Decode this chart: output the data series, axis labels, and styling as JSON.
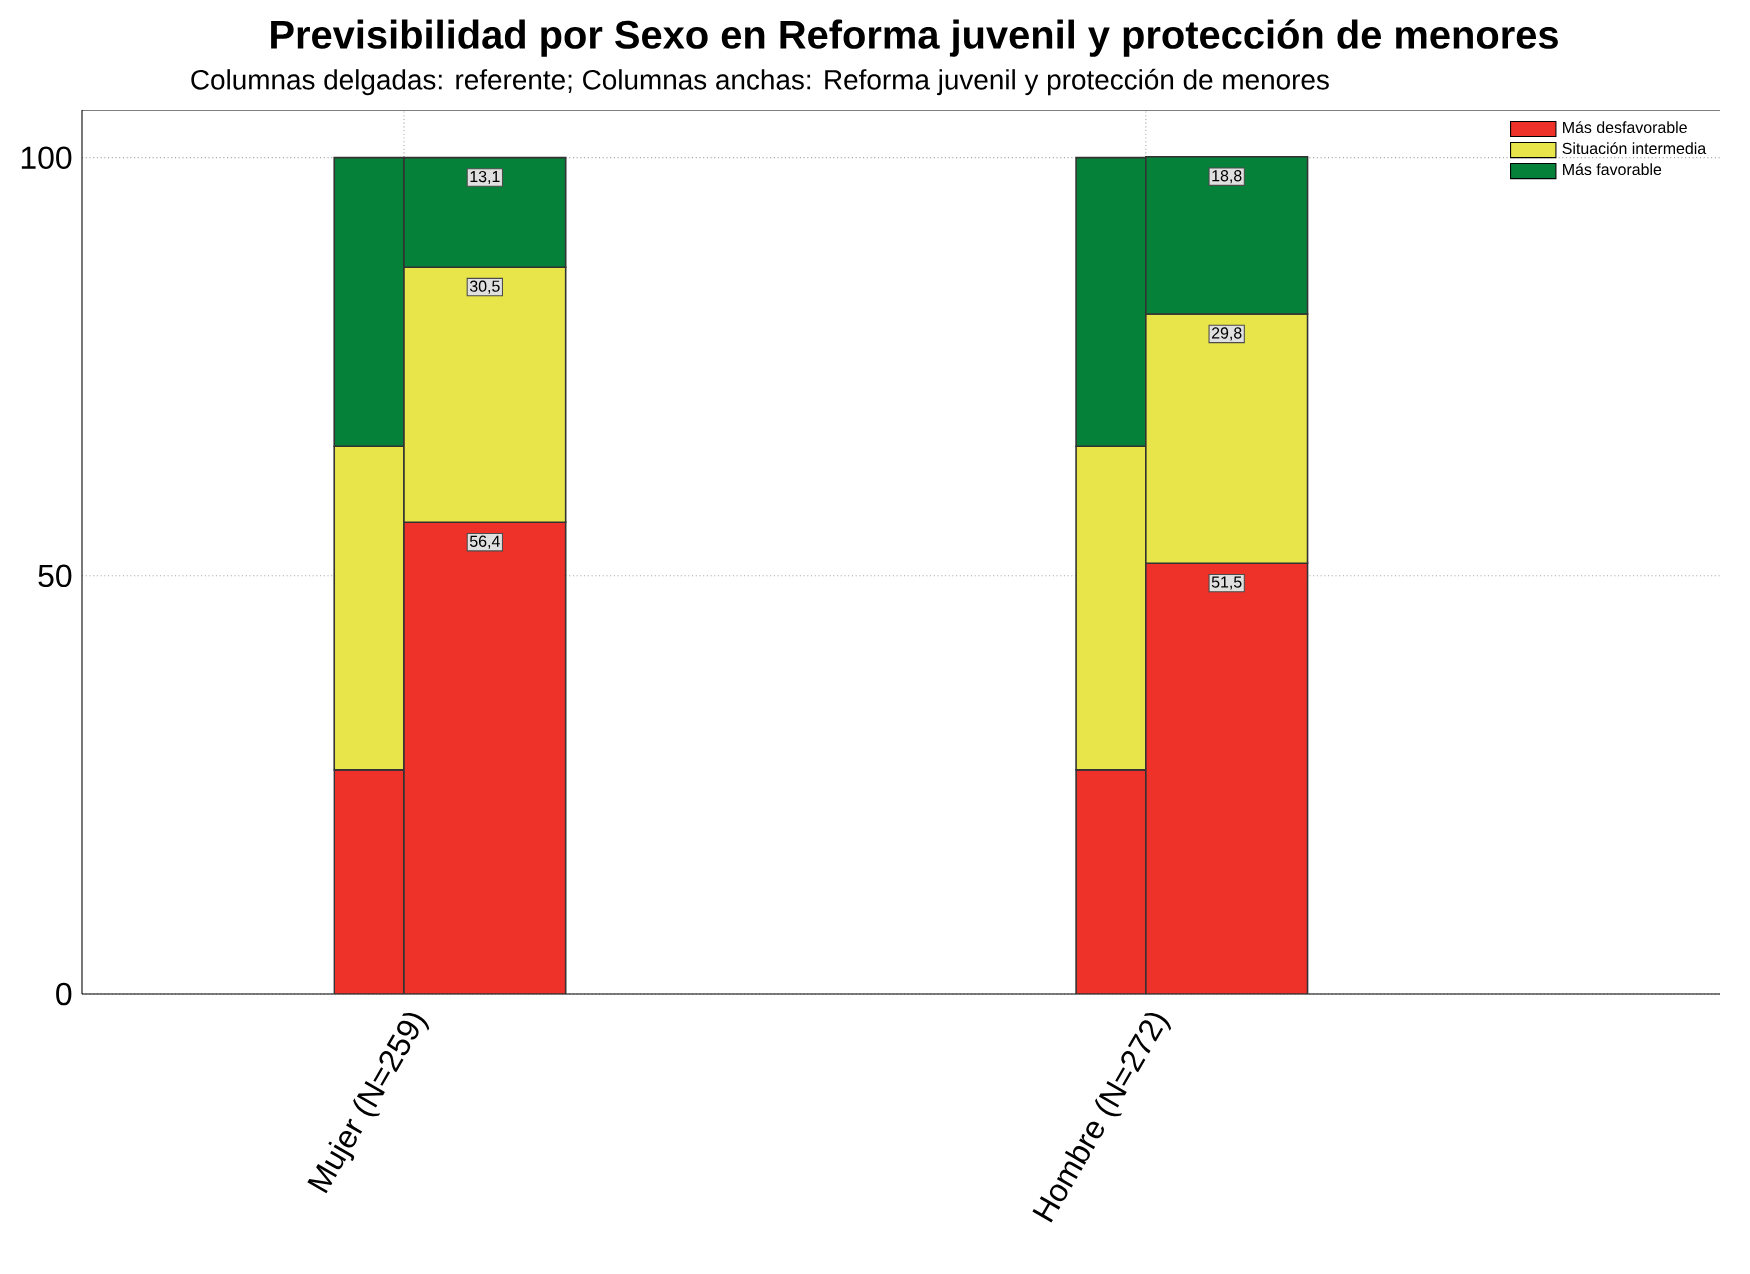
{
  "chart_data": {
    "type": "bar",
    "title": "Previsibilidad por Sexo en Reforma juvenil y protección de menores",
    "subtitle": "Columnas delgadas: referente; Columnas anchas: Reforma juvenil y protección de menores",
    "categories": [
      "Mujer (N=259)",
      "Hombre (N=272)"
    ],
    "series": [
      {
        "color": "#ee3129",
        "values": [
          26.8,
          26.8
        ],
        "base": [
          0,
          0
        ]
      },
      {
        "color": "#e8e54a",
        "values": [
          38.7,
          38.7
        ],
        "base": [
          26.8,
          26.8
        ]
      },
      {
        "color": "#05813a",
        "values": [
          34.5,
          34.5
        ],
        "base": [
          65.5,
          65.5
        ]
      },
      {
        "name": "Más  desfavorable",
        "color": "#ee3129",
        "values": [
          56.4,
          51.5
        ],
        "base": [
          0,
          0
        ],
        "value_labels": [
          "56,4",
          "51,5"
        ]
      },
      {
        "name": "Situación intermedia",
        "color": "#e8e54a",
        "values": [
          30.5,
          29.8
        ],
        "base": [
          56.4,
          51.5
        ],
        "value_labels": [
          "30,5",
          "29,8"
        ]
      },
      {
        "name": "Más favorable",
        "color": "#05813a",
        "values": [
          13.1,
          18.8
        ],
        "base": [
          86.9,
          81.3
        ],
        "value_labels": [
          "13,1",
          "18,8"
        ]
      }
    ],
    "ylim": [
      0,
      105.7
    ],
    "yticks": [
      0,
      50,
      100
    ],
    "grid": true,
    "legend": "top right"
  }
}
